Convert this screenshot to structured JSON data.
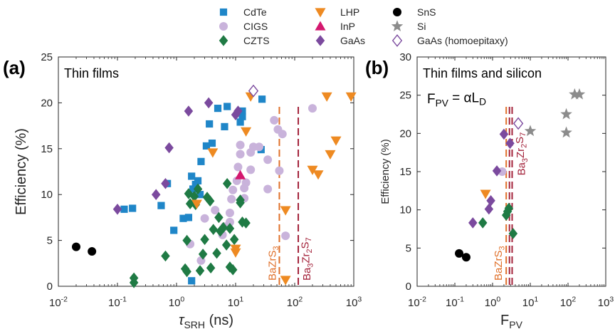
{
  "legend": {
    "placement": "top",
    "entries": [
      {
        "name": "CdTe",
        "marker": "square",
        "color": "#1f86c8"
      },
      {
        "name": "CIGS",
        "marker": "circle",
        "color": "#c9b3db"
      },
      {
        "name": "CZTS",
        "marker": "diamond",
        "color": "#1f7a44"
      },
      {
        "name": "LHP",
        "marker": "triangle-down",
        "color": "#ee8a22"
      },
      {
        "name": "InP",
        "marker": "triangle-up",
        "color": "#d4186f"
      },
      {
        "name": "GaAs",
        "marker": "diamond",
        "color": "#7b4a9e"
      },
      {
        "name": "SnS",
        "marker": "circle",
        "color": "#000000"
      },
      {
        "name": "Si",
        "marker": "star",
        "color": "#8c8c8c"
      },
      {
        "name": "GaAs (homoepitaxy)",
        "marker": "diamond-open",
        "color": "#7b4a9e"
      }
    ]
  },
  "chart_data": [
    {
      "type": "scatter",
      "panel_label": "(a)",
      "title": "Thin films",
      "annotation": "",
      "xlabel": "τ",
      "xlabel_sub": "SRH",
      "xlabel_unit": " (ns)",
      "ylabel": "Efficiency (%)",
      "xscale": "log",
      "xlim": [
        0.01,
        1000
      ],
      "ylim": [
        0,
        25
      ],
      "xticks": [
        0.01,
        0.1,
        1,
        10,
        100,
        1000
      ],
      "xtick_labels": [
        [
          "10",
          "-2"
        ],
        [
          "10",
          "-1"
        ],
        [
          "10",
          "0"
        ],
        [
          "10",
          "1"
        ],
        [
          "10",
          "2"
        ],
        [
          "10",
          "3"
        ]
      ],
      "yticks": [
        0,
        5,
        10,
        15,
        20,
        25
      ],
      "ytick_labels": [
        "0",
        "5",
        "10",
        "15",
        "20",
        "25"
      ],
      "grid": false,
      "vlines": [
        {
          "x": 55,
          "color": "#e0702a",
          "label": [
            "BaZrS",
            "3"
          ],
          "label_pos": "bottom-left"
        },
        {
          "x": 115,
          "color": "#a3223a",
          "label": [
            "Ba",
            "3",
            "Zr",
            "2",
            "S",
            "7"
          ],
          "label_pos": "bottom-right"
        }
      ],
      "series": [
        {
          "name": "CdTe",
          "points": [
            [
              0.13,
              8.4
            ],
            [
              0.18,
              8.5
            ],
            [
              0.55,
              8.8
            ],
            [
              0.7,
              11.2
            ],
            [
              0.9,
              6.1
            ],
            [
              1.3,
              7.4
            ],
            [
              1.6,
              7.5
            ],
            [
              1.8,
              12
            ],
            [
              1.9,
              10.6
            ],
            [
              2.1,
              11.1
            ],
            [
              2.3,
              11.5
            ],
            [
              2.5,
              10
            ],
            [
              1.8,
              0.6
            ],
            [
              2.6,
              13.6
            ],
            [
              3.2,
              15.3
            ],
            [
              3.6,
              17.7
            ],
            [
              5,
              19.4
            ],
            [
              6.5,
              17.4
            ],
            [
              7.2,
              19.6
            ],
            [
              12,
              17.9
            ],
            [
              13,
              18.5
            ],
            [
              13,
              19.1
            ],
            [
              27,
              14.9
            ],
            [
              28,
              20.4
            ],
            [
              4,
              15.6
            ]
          ]
        },
        {
          "name": "CIGS",
          "points": [
            [
              1.7,
              4.6
            ],
            [
              3,
              7.4
            ],
            [
              4.5,
              8.3
            ],
            [
              6,
              5.6
            ],
            [
              6.5,
              6.5
            ],
            [
              8,
              7
            ],
            [
              8,
              8
            ],
            [
              8.5,
              9.5
            ],
            [
              9,
              10.5
            ],
            [
              10.5,
              11.5
            ],
            [
              11,
              13
            ],
            [
              12,
              14.4
            ],
            [
              12,
              15.4
            ],
            [
              14,
              9.6
            ],
            [
              14,
              10.7
            ],
            [
              15,
              11.3
            ],
            [
              18,
              12.7
            ],
            [
              18,
              14.6
            ],
            [
              20,
              15.2
            ],
            [
              25,
              15.2
            ],
            [
              35,
              10.6
            ],
            [
              35,
              13.8
            ],
            [
              45,
              18.1
            ],
            [
              52,
              17.1
            ],
            [
              55,
              12.6
            ],
            [
              62,
              16.6
            ],
            [
              70,
              5.5
            ],
            [
              200,
              19.4
            ],
            [
              2.6,
              2.8
            ]
          ]
        },
        {
          "name": "CZTS",
          "points": [
            [
              0.19,
              0.4
            ],
            [
              0.19,
              0.9
            ],
            [
              0.65,
              3.3
            ],
            [
              1.4,
              1.9
            ],
            [
              1.5,
              1.6
            ],
            [
              1.5,
              5
            ],
            [
              1.6,
              10.1
            ],
            [
              1.7,
              9
            ],
            [
              2.1,
              8.9
            ],
            [
              2,
              9.8
            ],
            [
              2.3,
              10.6
            ],
            [
              2.5,
              1.7
            ],
            [
              2.8,
              3.5
            ],
            [
              3,
              5.1
            ],
            [
              3.3,
              9.7
            ],
            [
              3.7,
              9.3
            ],
            [
              3.8,
              2
            ],
            [
              4.2,
              6.2
            ],
            [
              4.8,
              3.6
            ],
            [
              5.2,
              7.5
            ],
            [
              5.5,
              6
            ],
            [
              6.2,
              6.4
            ],
            [
              7,
              4.5
            ],
            [
              7.2,
              11.2
            ],
            [
              8,
              6.3
            ],
            [
              8,
              2.1
            ],
            [
              9,
              1.8
            ],
            [
              9.5,
              5.1
            ],
            [
              12,
              9.1
            ],
            [
              12,
              9.4
            ],
            [
              13,
              7
            ],
            [
              15,
              6.9
            ]
          ]
        },
        {
          "name": "LHP",
          "points": [
            [
              2.2,
              9
            ],
            [
              4.1,
              14.6
            ],
            [
              10,
              3.7
            ],
            [
              10,
              4.1
            ],
            [
              15,
              16.9
            ],
            [
              18,
              20.7
            ],
            [
              70,
              0.7
            ],
            [
              70,
              8.3
            ],
            [
              200,
              12.7
            ],
            [
              250,
              12.2
            ],
            [
              350,
              20.7
            ],
            [
              400,
              14.4
            ],
            [
              500,
              15.9
            ],
            [
              900,
              20.7
            ]
          ]
        },
        {
          "name": "InP",
          "points": [
            [
              12,
              12.1
            ]
          ]
        },
        {
          "name": "GaAs",
          "points": [
            [
              0.1,
              8.4
            ],
            [
              0.45,
              10
            ],
            [
              0.65,
              11.2
            ],
            [
              0.75,
              15.1
            ],
            [
              1.6,
              19.1
            ],
            [
              3.5,
              20
            ],
            [
              10,
              18.7
            ],
            [
              11,
              19.1
            ]
          ]
        },
        {
          "name": "SnS",
          "points": [
            [
              0.02,
              4.3
            ],
            [
              0.037,
              3.8
            ]
          ]
        },
        {
          "name": "GaAs (homoepitaxy)",
          "points": [
            [
              20,
              21.3
            ]
          ]
        }
      ]
    },
    {
      "type": "scatter",
      "panel_label": "(b)",
      "title": "Thin films and silicon",
      "annotation": [
        "F",
        "PV",
        " = αL",
        "D"
      ],
      "xlabel": "F",
      "xlabel_sub": "PV",
      "xlabel_unit": "",
      "ylabel": "Efficiency (%)",
      "xscale": "log",
      "xlim": [
        0.01,
        1000
      ],
      "ylim": [
        0,
        30
      ],
      "xticks": [
        0.01,
        0.1,
        1,
        10,
        100,
        1000
      ],
      "xtick_labels": [
        [
          "10",
          "-2"
        ],
        [
          "10",
          "-1"
        ],
        [
          "10",
          "0"
        ],
        [
          "10",
          "1"
        ],
        [
          "10",
          "2"
        ],
        [
          "10",
          "3"
        ]
      ],
      "yticks": [
        0,
        5,
        10,
        15,
        20,
        25,
        30
      ],
      "ytick_labels": [
        "0",
        "5",
        "10",
        "15",
        "20",
        "25",
        "30"
      ],
      "grid": false,
      "vlines": [
        {
          "x": 2.3,
          "color": "#e0702a",
          "label": [
            "BaZrS",
            "3"
          ],
          "label_pos": "bottom-left"
        },
        {
          "x": 2.8,
          "color": "#a3223a",
          "label": null
        },
        {
          "x": 3.3,
          "color": "#a3223a",
          "label": [
            "Ba",
            "3",
            "Zr",
            "2",
            "S",
            "7"
          ],
          "label_pos": "top-right"
        }
      ],
      "series": [
        {
          "name": "CIGS",
          "points": [
            [
              1.8,
              15
            ]
          ]
        },
        {
          "name": "CZTS",
          "points": [
            [
              0.55,
              8.3
            ],
            [
              2.3,
              9.3
            ],
            [
              2.5,
              9.8
            ],
            [
              2.7,
              10.2
            ],
            [
              3.5,
              6.9
            ]
          ]
        },
        {
          "name": "LHP",
          "points": [
            [
              0.65,
              12.1
            ]
          ]
        },
        {
          "name": "GaAs",
          "points": [
            [
              0.3,
              8.3
            ],
            [
              0.8,
              10.1
            ],
            [
              0.9,
              11.2
            ],
            [
              1.3,
              15.1
            ],
            [
              2,
              19.9
            ],
            [
              2.9,
              18.7
            ]
          ]
        },
        {
          "name": "SnS",
          "points": [
            [
              0.13,
              4.3
            ],
            [
              0.2,
              3.8
            ]
          ]
        },
        {
          "name": "Si",
          "points": [
            [
              10,
              20.3
            ],
            [
              90,
              20.1
            ],
            [
              90,
              22.5
            ],
            [
              150,
              25.1
            ],
            [
              200,
              25.1
            ]
          ]
        },
        {
          "name": "GaAs (homoepitaxy)",
          "points": [
            [
              4.8,
              21.3
            ]
          ]
        }
      ]
    }
  ]
}
